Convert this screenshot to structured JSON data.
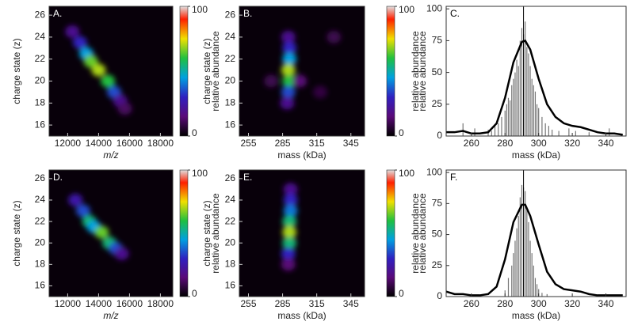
{
  "chart_data": [
    {
      "type": "heatmap",
      "panel": "A.",
      "xlabel": "m/z",
      "xlabel_italic": true,
      "ylabel": "charge state (z)",
      "xlim": [
        10800,
        18800
      ],
      "xticks": [
        12000,
        14000,
        16000,
        18000
      ],
      "ylim": [
        15,
        26.8
      ],
      "yticks": [
        16,
        18,
        20,
        22,
        24,
        26
      ],
      "x": [
        12300,
        12800,
        13200,
        13500,
        14000,
        14600,
        15000,
        15400,
        15700
      ],
      "y": [
        24.5,
        23.5,
        22.5,
        21.8,
        21,
        20,
        19,
        18.2,
        17.5
      ],
      "values": [
        20,
        30,
        45,
        65,
        70,
        60,
        35,
        20,
        12
      ],
      "colorbar": {
        "label": "relative abundance",
        "lim": [
          0,
          100
        ],
        "ticks": [
          0,
          100
        ]
      }
    },
    {
      "type": "heatmap",
      "panel": "B.",
      "xlabel": "mass (kDa)",
      "ylabel": "charge state (z)",
      "xlim": [
        247,
        357
      ],
      "xticks": [
        255,
        285,
        315,
        345
      ],
      "ylim": [
        15,
        26.8
      ],
      "yticks": [
        16,
        18,
        20,
        22,
        24,
        26
      ],
      "x": [
        290,
        291,
        291,
        290,
        291,
        290,
        289,
        275,
        300,
        330,
        318
      ],
      "y": [
        24,
        23,
        22,
        21,
        20,
        19,
        18,
        20,
        20,
        24,
        19
      ],
      "values": [
        20,
        30,
        45,
        70,
        60,
        35,
        20,
        10,
        15,
        10,
        8
      ],
      "colorbar": {
        "label": "relative abundance",
        "lim": [
          0,
          100
        ],
        "ticks": [
          0,
          100
        ]
      }
    },
    {
      "type": "line",
      "panel": "C.",
      "xlabel": "mass (kDa)",
      "ylabel": "relative abundance",
      "xlim": [
        245,
        352
      ],
      "xticks": [
        260,
        280,
        300,
        320,
        340
      ],
      "ylim": [
        0,
        102
      ],
      "yticks": [
        0,
        25,
        50,
        75,
        100
      ],
      "vline": 291,
      "series": [
        {
          "style": "sticks",
          "color": "#777777",
          "x": [
            255,
            262,
            270,
            272,
            274,
            276,
            278,
            280,
            281,
            282,
            283,
            284,
            285,
            286,
            287,
            288,
            289,
            290,
            291,
            292,
            293,
            294,
            295,
            296,
            297,
            298,
            299,
            300,
            302,
            304,
            306,
            308,
            312,
            318,
            322,
            330,
            342
          ],
          "values": [
            10,
            6,
            5,
            4,
            8,
            10,
            15,
            20,
            25,
            30,
            28,
            40,
            45,
            50,
            60,
            55,
            75,
            85,
            80,
            90,
            70,
            65,
            55,
            45,
            40,
            35,
            25,
            22,
            15,
            10,
            8,
            5,
            4,
            6,
            4,
            3,
            6
          ]
        },
        {
          "style": "line",
          "color": "#000000",
          "x": [
            245,
            250,
            255,
            260,
            265,
            270,
            275,
            280,
            285,
            290,
            292,
            295,
            300,
            305,
            310,
            315,
            320,
            325,
            330,
            335,
            340,
            345,
            350
          ],
          "values": [
            3,
            3,
            4,
            2,
            2,
            3,
            10,
            30,
            58,
            74,
            75,
            68,
            45,
            25,
            15,
            10,
            8,
            7,
            5,
            3,
            2,
            2,
            1
          ]
        }
      ]
    },
    {
      "type": "heatmap",
      "panel": "D.",
      "xlabel": "m/z",
      "xlabel_italic": true,
      "ylabel": "charge state (z)",
      "xlim": [
        10800,
        18800
      ],
      "xticks": [
        12000,
        14000,
        16000,
        18000
      ],
      "ylim": [
        15,
        26.8
      ],
      "yticks": [
        16,
        18,
        20,
        22,
        24,
        26
      ],
      "x": [
        12500,
        13000,
        13400,
        13700,
        14200,
        14700,
        15100,
        15500
      ],
      "y": [
        24,
        23,
        22,
        21.5,
        21,
        20,
        19.5,
        19
      ],
      "values": [
        25,
        35,
        55,
        45,
        65,
        55,
        35,
        20
      ],
      "colorbar": {
        "label": "relative abundance",
        "lim": [
          0,
          100
        ],
        "ticks": [
          0,
          100
        ]
      }
    },
    {
      "type": "heatmap",
      "panel": "E.",
      "xlabel": "mass (kDa)",
      "ylabel": "charge state (z)",
      "xlim": [
        247,
        357
      ],
      "xticks": [
        255,
        285,
        315,
        345
      ],
      "ylim": [
        15,
        26.8
      ],
      "yticks": [
        16,
        18,
        20,
        22,
        24,
        26
      ],
      "x": [
        292,
        292,
        292,
        291,
        291,
        291,
        290,
        290
      ],
      "y": [
        25,
        24,
        23,
        22,
        21,
        20,
        19,
        18
      ],
      "values": [
        20,
        30,
        40,
        55,
        70,
        55,
        30,
        15
      ],
      "colorbar": {
        "label": "relative abundance",
        "lim": [
          0,
          100
        ],
        "ticks": [
          0,
          100
        ]
      }
    },
    {
      "type": "line",
      "panel": "F.",
      "xlabel": "mass (kDa)",
      "ylabel": "relative abundance",
      "xlim": [
        245,
        352
      ],
      "xticks": [
        260,
        280,
        300,
        320,
        340
      ],
      "ylim": [
        0,
        102
      ],
      "yticks": [
        0,
        25,
        50,
        75,
        100
      ],
      "vline": 291,
      "series": [
        {
          "style": "sticks",
          "color": "#777777",
          "x": [
            280,
            282,
            284,
            285,
            286,
            287,
            288,
            289,
            290,
            291,
            292,
            293,
            294,
            295,
            296,
            297,
            298,
            299,
            300,
            302,
            305
          ],
          "values": [
            5,
            15,
            25,
            35,
            45,
            55,
            65,
            80,
            90,
            88,
            85,
            70,
            60,
            45,
            35,
            25,
            15,
            10,
            6,
            3,
            2
          ]
        },
        {
          "style": "line",
          "color": "#000000",
          "x": [
            245,
            250,
            255,
            260,
            265,
            270,
            275,
            280,
            285,
            290,
            292,
            295,
            300,
            305,
            310,
            315,
            320,
            325,
            330,
            335,
            340,
            345,
            350
          ],
          "values": [
            4,
            2,
            2,
            1,
            1,
            2,
            8,
            30,
            60,
            74,
            74,
            65,
            42,
            20,
            10,
            6,
            5,
            4,
            2,
            1,
            1,
            1,
            1
          ]
        }
      ]
    }
  ]
}
